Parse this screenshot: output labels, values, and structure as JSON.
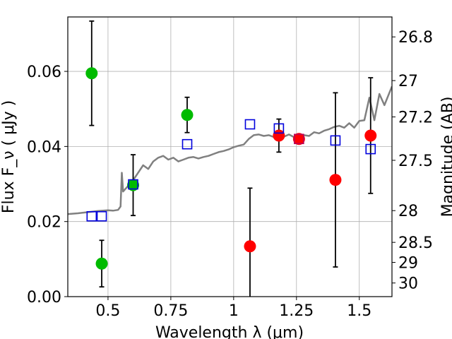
{
  "chart_data": {
    "type": "scatter",
    "title": "",
    "xlabel": "Wavelength  λ (μm)",
    "ylabel": "Flux  F_ν  ( μJy )",
    "ylabel_right": "Magnitude (AB)",
    "xlim": [
      0.34,
      1.63
    ],
    "ylim": [
      0.0,
      0.0745
    ],
    "grid": true,
    "x_ticks": [
      {
        "value": 0.5,
        "label": "0.5"
      },
      {
        "value": 0.75,
        "label": "0.75"
      },
      {
        "value": 1.0,
        "label": "1"
      },
      {
        "value": 1.25,
        "label": "1.25"
      },
      {
        "value": 1.5,
        "label": "1.5"
      }
    ],
    "y_ticks": [
      {
        "value": 0.0,
        "label": "0.00"
      },
      {
        "value": 0.02,
        "label": "0.02"
      },
      {
        "value": 0.04,
        "label": "0.04"
      },
      {
        "value": 0.06,
        "label": "0.06"
      }
    ],
    "right_ticks": [
      {
        "mag": 26.8,
        "label": "26.8"
      },
      {
        "mag": 27.0,
        "label": "27"
      },
      {
        "mag": 27.2,
        "label": "27.2"
      },
      {
        "mag": 27.5,
        "label": "27.5"
      },
      {
        "mag": 28.0,
        "label": "28"
      },
      {
        "mag": 28.5,
        "label": "28.5"
      },
      {
        "mag": 29.0,
        "label": "29"
      },
      {
        "mag": 30.0,
        "label": "30"
      }
    ],
    "series": [
      {
        "kind": "line",
        "color": "#808080",
        "x": [
          0.34,
          0.38,
          0.42,
          0.46,
          0.5,
          0.52,
          0.54,
          0.55,
          0.555,
          0.56,
          0.58,
          0.6,
          0.62,
          0.64,
          0.66,
          0.68,
          0.7,
          0.72,
          0.74,
          0.76,
          0.78,
          0.8,
          0.82,
          0.84,
          0.86,
          0.88,
          0.9,
          0.92,
          0.94,
          0.96,
          0.98,
          1.0,
          1.02,
          1.04,
          1.06,
          1.08,
          1.1,
          1.12,
          1.14,
          1.16,
          1.18,
          1.2,
          1.22,
          1.24,
          1.26,
          1.28,
          1.3,
          1.32,
          1.34,
          1.36,
          1.38,
          1.4,
          1.42,
          1.44,
          1.46,
          1.48,
          1.5,
          1.52,
          1.54,
          1.56,
          1.58,
          1.6,
          1.63
        ],
        "y": [
          0.022,
          0.0222,
          0.0225,
          0.0228,
          0.023,
          0.0229,
          0.0231,
          0.024,
          0.033,
          0.028,
          0.0295,
          0.031,
          0.033,
          0.035,
          0.034,
          0.036,
          0.037,
          0.0375,
          0.0365,
          0.037,
          0.036,
          0.0365,
          0.037,
          0.0372,
          0.0368,
          0.0372,
          0.0375,
          0.038,
          0.0385,
          0.0388,
          0.0392,
          0.0398,
          0.0402,
          0.0405,
          0.042,
          0.043,
          0.0432,
          0.0428,
          0.043,
          0.0425,
          0.043,
          0.0426,
          0.0432,
          0.0425,
          0.0422,
          0.043,
          0.0428,
          0.0438,
          0.0435,
          0.0442,
          0.0446,
          0.0452,
          0.0455,
          0.045,
          0.0462,
          0.045,
          0.0468,
          0.047,
          0.053,
          0.047,
          0.054,
          0.051,
          0.056
        ]
      },
      {
        "kind": "points",
        "marker": "circle",
        "color": "#00bb00",
        "points": [
          {
            "x": 0.435,
            "y": 0.0595,
            "err": 0.0139
          },
          {
            "x": 0.475,
            "y": 0.0088,
            "err": 0.0062
          },
          {
            "x": 0.6,
            "y": 0.0297,
            "err": 0.0081
          },
          {
            "x": 0.815,
            "y": 0.0484,
            "err": 0.0047
          }
        ]
      },
      {
        "kind": "points",
        "marker": "circle",
        "color": "#ff0000",
        "points": [
          {
            "x": 1.065,
            "y": 0.0134,
            "err": 0.0155
          },
          {
            "x": 1.18,
            "y": 0.0429,
            "err": 0.0044
          },
          {
            "x": 1.26,
            "y": 0.042,
            "err": 0.0
          },
          {
            "x": 1.405,
            "y": 0.0311,
            "err": 0.0232
          },
          {
            "x": 1.545,
            "y": 0.0429,
            "err": 0.0154
          }
        ]
      },
      {
        "kind": "points",
        "marker": "square",
        "color": "#0000dd",
        "points": [
          {
            "x": 0.435,
            "y": 0.0214
          },
          {
            "x": 0.475,
            "y": 0.0214
          },
          {
            "x": 0.6,
            "y": 0.0299
          },
          {
            "x": 0.815,
            "y": 0.0406
          },
          {
            "x": 1.065,
            "y": 0.0459
          },
          {
            "x": 1.18,
            "y": 0.0448
          },
          {
            "x": 1.405,
            "y": 0.0416
          },
          {
            "x": 1.545,
            "y": 0.0393
          }
        ]
      },
      {
        "kind": "points",
        "marker": "square",
        "color": "#bb0055",
        "points": [
          {
            "x": 1.26,
            "y": 0.042
          }
        ]
      }
    ]
  }
}
